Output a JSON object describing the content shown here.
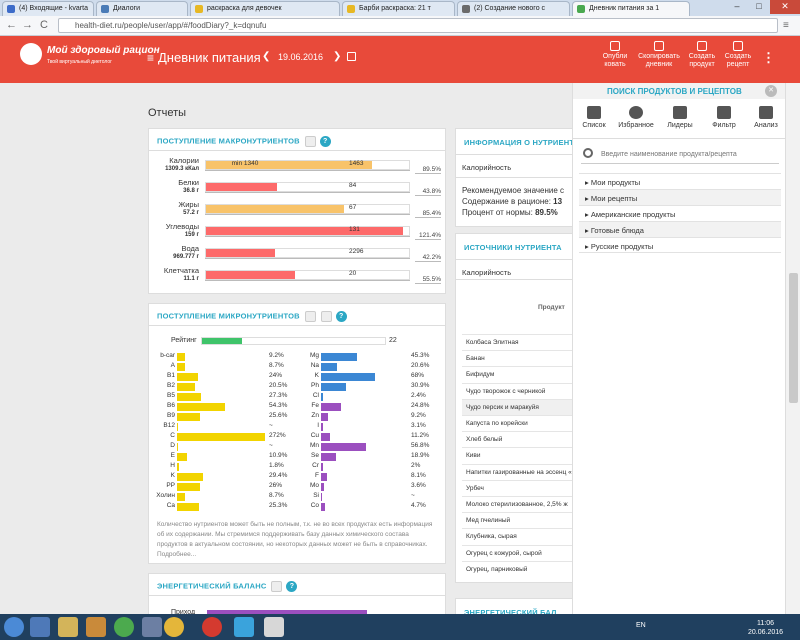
{
  "browser": {
    "tabs": [
      {
        "label": "(4) Входящие - kvarta",
        "color": "#3d6cc9"
      },
      {
        "label": "Диалоги",
        "color": "#4a7bb7"
      },
      {
        "label": "раскраска для девочек",
        "color": "#e7b824"
      },
      {
        "label": "Барби раскраска: 21 т",
        "color": "#e7b824"
      },
      {
        "label": "(2) Создание нового с",
        "color": "#6b6b6b"
      },
      {
        "label": "Дневник питания за 1",
        "color": "#49a84f"
      }
    ],
    "url": "health-diet.ru/people/user/app/#/foodDiary?_k=dqnufu",
    "back": "←",
    "forward": "→",
    "reload": "C",
    "min": "–",
    "max": "□",
    "close": "✕"
  },
  "header": {
    "brand": "Мой здоровый рацион",
    "slogan": "Твой виртуальный диетолог",
    "title": "Дневник питания",
    "date": "19.06.2016",
    "prev": "❮",
    "next": "❯",
    "actions": [
      {
        "line1": "Опубли",
        "line2": "ковать"
      },
      {
        "line1": "Скопировать",
        "line2": "дневник"
      },
      {
        "line1": "Создать",
        "line2": "продукт"
      },
      {
        "line1": "Создать",
        "line2": "рецепт"
      }
    ],
    "more": "⋮"
  },
  "reports_title": "Отчеты",
  "macro": {
    "title": "ПОСТУПЛЕНИЕ МАКРОНУТРИЕНТОВ",
    "rows": [
      {
        "name": "Калории",
        "amount": "1309.3 кКал",
        "pct": "89.5%",
        "fill": 0.82,
        "color": "#f8c36a",
        "limit": "1463",
        "min": "min 1340",
        "minpos": 0.13,
        "limpos": 0.8
      },
      {
        "name": "Белки",
        "amount": "36.8 г",
        "pct": "43.8%",
        "fill": 0.35,
        "color": "#fd6a6a",
        "limit": "84",
        "limpos": 0.8
      },
      {
        "name": "Жиры",
        "amount": "57.2 г",
        "pct": "85.4%",
        "fill": 0.68,
        "color": "#f8c36a",
        "limit": "67",
        "limpos": 0.8
      },
      {
        "name": "Углеводы",
        "amount": "159 г",
        "pct": "121.4%",
        "fill": 0.97,
        "color": "#fd6a6a",
        "limit": "131",
        "limpos": 0.8
      },
      {
        "name": "Вода",
        "amount": "969.777 г",
        "pct": "42.2%",
        "fill": 0.34,
        "color": "#fd6a6a",
        "limit": "2296",
        "limpos": 0.8
      },
      {
        "name": "Клетчатка",
        "amount": "11.1 г",
        "pct": "55.5%",
        "fill": 0.44,
        "color": "#fd6a6a",
        "limit": "20",
        "limpos": 0.8
      }
    ]
  },
  "micro": {
    "title": "ПОСТУПЛЕНИЕ МИКРОНУТРИЕНТОВ",
    "rating_label": "Рейтинг",
    "rating_value": "22",
    "rating_fill": 0.22,
    "vitamins": [
      {
        "n": "b-car",
        "p": "9.2%",
        "f": 0.092
      },
      {
        "n": "A",
        "p": "8.7%",
        "f": 0.087
      },
      {
        "n": "B1",
        "p": "24%",
        "f": 0.24
      },
      {
        "n": "B2",
        "p": "20.5%",
        "f": 0.205
      },
      {
        "n": "B5",
        "p": "27.3%",
        "f": 0.273
      },
      {
        "n": "B6",
        "p": "54.3%",
        "f": 0.543
      },
      {
        "n": "B9",
        "p": "25.6%",
        "f": 0.256
      },
      {
        "n": "B12",
        "p": "~",
        "f": 0
      },
      {
        "n": "C",
        "p": "272%",
        "f": 1
      },
      {
        "n": "D",
        "p": "~",
        "f": 0
      },
      {
        "n": "E",
        "p": "10.9%",
        "f": 0.109
      },
      {
        "n": "H",
        "p": "1.8%",
        "f": 0.018
      },
      {
        "n": "K",
        "p": "29.4%",
        "f": 0.294
      },
      {
        "n": "PP",
        "p": "26%",
        "f": 0.26
      },
      {
        "n": "Холин",
        "p": "8.7%",
        "f": 0.087
      },
      {
        "n": "Ca",
        "p": "25.3%",
        "f": 0.253
      }
    ],
    "minerals": [
      {
        "n": "Mg",
        "p": "45.3%",
        "f": 0.453,
        "c": "#3b87d4"
      },
      {
        "n": "Na",
        "p": "20.6%",
        "f": 0.206,
        "c": "#3b87d4"
      },
      {
        "n": "K",
        "p": "68%",
        "f": 0.68,
        "c": "#3b87d4"
      },
      {
        "n": "Ph",
        "p": "30.9%",
        "f": 0.309,
        "c": "#3b87d4"
      },
      {
        "n": "Cl",
        "p": "2.4%",
        "f": 0.024,
        "c": "#3b87d4"
      },
      {
        "n": "Fe",
        "p": "24.8%",
        "f": 0.248,
        "c": "#9b4fbf"
      },
      {
        "n": "Zn",
        "p": "9.2%",
        "f": 0.092,
        "c": "#9b4fbf"
      },
      {
        "n": "I",
        "p": "3.1%",
        "f": 0.031,
        "c": "#9b4fbf"
      },
      {
        "n": "Cu",
        "p": "11.2%",
        "f": 0.112,
        "c": "#9b4fbf"
      },
      {
        "n": "Mn",
        "p": "56.8%",
        "f": 0.568,
        "c": "#9b4fbf"
      },
      {
        "n": "Se",
        "p": "18.9%",
        "f": 0.189,
        "c": "#9b4fbf"
      },
      {
        "n": "Cr",
        "p": "2%",
        "f": 0.02,
        "c": "#9b4fbf"
      },
      {
        "n": "F",
        "p": "8.1%",
        "f": 0.081,
        "c": "#9b4fbf"
      },
      {
        "n": "Mo",
        "p": "3.6%",
        "f": 0.036,
        "c": "#9b4fbf"
      },
      {
        "n": "Si",
        "p": "~",
        "f": 0,
        "c": "#9b4fbf"
      },
      {
        "n": "Co",
        "p": "4.7%",
        "f": 0.047,
        "c": "#9b4fbf"
      }
    ],
    "note": "Количество нутриентов может быть не полным, т.к. не во всех продуктах есть информация об их содержании. Мы стремимся поддерживать базу данных химического состава продуктов в актуальном состоянии, но некоторых данных может не быть в справочниках. Подробнее..."
  },
  "energy": {
    "title": "ЭНЕРГЕТИЧЕСКИЙ БАЛАНС",
    "row": "Приход"
  },
  "info": {
    "title": "ИНФОРМАЦИЯ О НУТРИЕНТЕ",
    "nutrient": "Калорийность",
    "recommended": "Рекомендуемое значение с",
    "content_label": "Содержание в рационе:",
    "content_val": "13",
    "pct_label": "Процент от нормы:",
    "pct_val": "89.5%"
  },
  "sources": {
    "title": "ИСТОЧНИКИ НУТРИЕНТА",
    "nutrient": "Калорийность",
    "col": "Продукт",
    "products": [
      "Колбаса Элитная",
      "Банан",
      "Бифидум",
      "Чудо творожок с черникой",
      "Чудо персик и маракуйя",
      "Капуста по корейски",
      "Хлеб белый",
      "Киви",
      "Напитки газированные на эссенц «Пепси-кола»",
      "Урбеч",
      "Молоко стерилизованное, 2,5% ж",
      "Мед пчелиный",
      "Клубника, сырая",
      "Огурец с кожурой, сырой",
      "Огурец, парниковый"
    ]
  },
  "energy2": {
    "title": "ЭНЕРГЕТИЧЕСКИЙ БАЛ"
  },
  "panel": {
    "title": "ПОИСК ПРОДУКТОВ И РЕЦЕПТОВ",
    "close": "✕",
    "tabs": [
      "Список",
      "Избранное",
      "Лидеры",
      "Фильтр",
      "Анализ"
    ],
    "search_placeholder": "Введите наименование продукта/рецепта",
    "items": [
      "Мои продукты",
      "Мои рецепты",
      "Американские продукты",
      "Готовые блюда",
      "Русские продукты"
    ]
  },
  "taskbar": {
    "lang": "EN",
    "time": "11:06",
    "date": "20.06.2016"
  }
}
